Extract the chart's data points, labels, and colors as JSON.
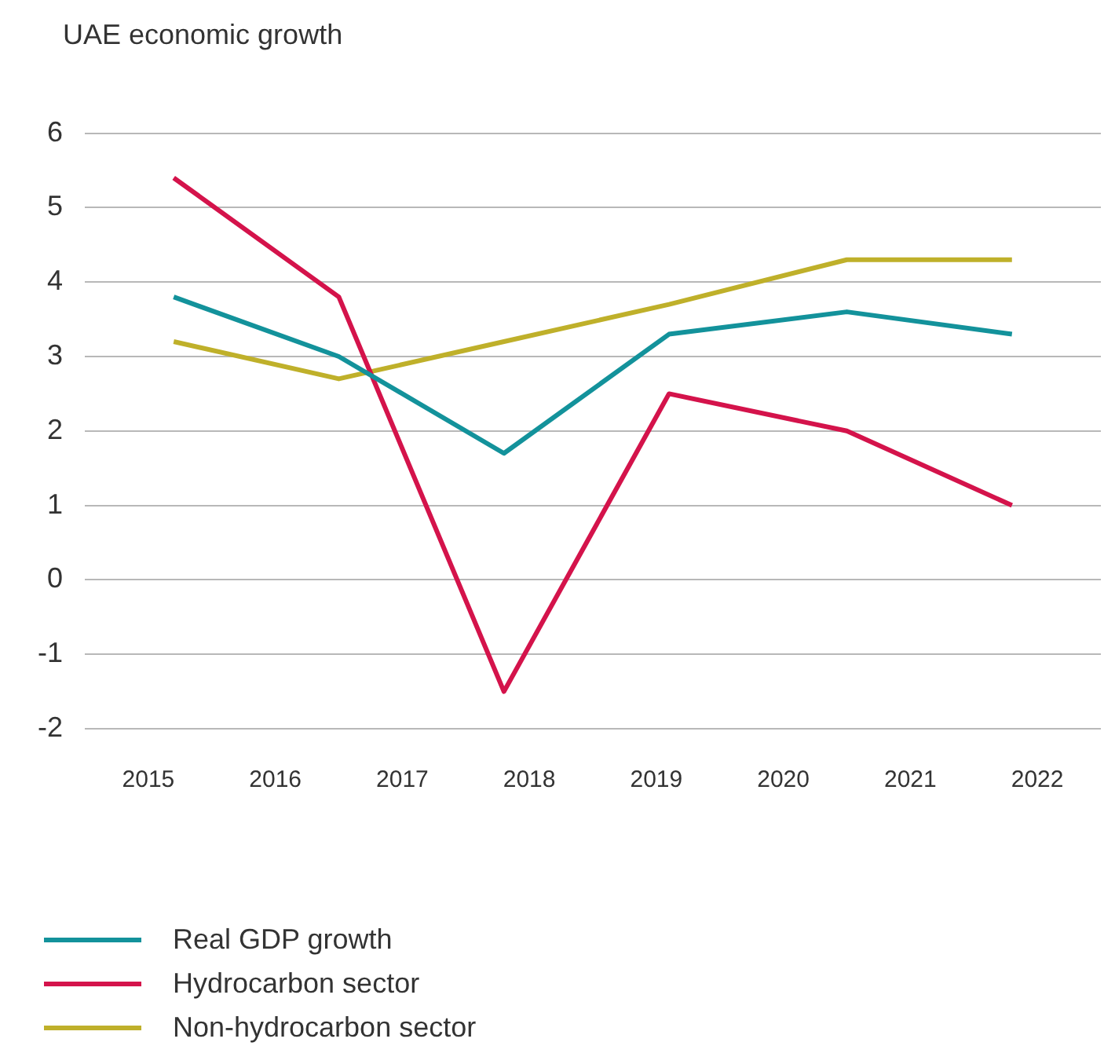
{
  "chart_data": {
    "type": "line",
    "title": "UAE economic growth",
    "x": [
      2015.2,
      2016.5,
      2017.8,
      2019.1,
      2020.5,
      2021.8
    ],
    "series": [
      {
        "name": "Real GDP growth",
        "color": "#13929b",
        "values": [
          3.8,
          3.0,
          1.7,
          3.3,
          3.6,
          3.3
        ]
      },
      {
        "name": "Hydrocarbon sector",
        "color": "#d4134b",
        "values": [
          5.4,
          3.8,
          -1.5,
          2.5,
          2.0,
          1.0
        ]
      },
      {
        "name": "Non-hydrocarbon sector",
        "color": "#bfb02a",
        "values": [
          3.2,
          2.7,
          3.2,
          3.7,
          4.3,
          4.3
        ]
      }
    ],
    "xlim": [
      2014.5,
      2022.5
    ],
    "xticks": [
      2015,
      2016,
      2017,
      2018,
      2019,
      2020,
      2021,
      2022
    ],
    "ylim": [
      -2,
      6
    ],
    "yticks": [
      -2,
      -1,
      0,
      1,
      2,
      3,
      4,
      5,
      6
    ],
    "grid": "y",
    "legend": "bottom",
    "marker": "none",
    "line_style": "solid"
  }
}
